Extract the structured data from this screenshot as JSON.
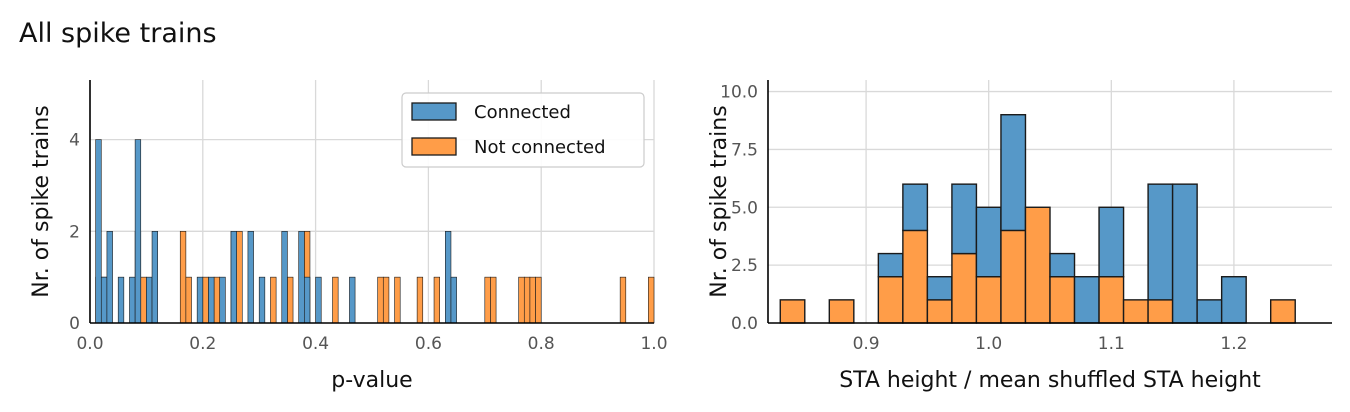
{
  "figure": {
    "suptitle": "All spike trains"
  },
  "colors": {
    "connected": "#5698c8",
    "not_connected": "#ff9d48",
    "grid": "#d9d9d9",
    "edge": "#1a1a1a"
  },
  "chart_data": [
    {
      "type": "bar",
      "subtype": "stacked-histogram",
      "xlabel": "p-value",
      "ylabel": "Nr. of spike trains",
      "xlim": [
        0,
        1
      ],
      "ylim": [
        0,
        5.3
      ],
      "xticks": [
        "0.0",
        "0.2",
        "0.4",
        "0.6",
        "0.8",
        "1.0"
      ],
      "yticks": [
        "0",
        "2",
        "4"
      ],
      "bin_width": 0.01,
      "legend": {
        "entries": [
          "Connected",
          "Not connected"
        ],
        "placement": "top-right"
      },
      "series": [
        {
          "name": "Connected",
          "bins": [
            [
              0.01,
              4
            ],
            [
              0.02,
              1
            ],
            [
              0.03,
              2
            ],
            [
              0.05,
              1
            ],
            [
              0.07,
              1
            ],
            [
              0.08,
              4
            ],
            [
              0.1,
              1
            ],
            [
              0.11,
              2
            ],
            [
              0.19,
              1
            ],
            [
              0.21,
              1
            ],
            [
              0.23,
              1
            ],
            [
              0.25,
              2
            ],
            [
              0.28,
              2
            ],
            [
              0.3,
              1
            ],
            [
              0.34,
              2
            ],
            [
              0.37,
              2
            ],
            [
              0.38,
              1
            ],
            [
              0.4,
              1
            ],
            [
              0.46,
              1
            ],
            [
              0.63,
              2
            ],
            [
              0.64,
              1
            ]
          ]
        },
        {
          "name": "Not connected",
          "bins": [
            [
              0.01,
              1
            ],
            [
              0.02,
              1
            ],
            [
              0.08,
              2
            ],
            [
              0.09,
              1
            ],
            [
              0.16,
              2
            ],
            [
              0.17,
              1
            ],
            [
              0.2,
              1
            ],
            [
              0.22,
              1
            ],
            [
              0.25,
              2
            ],
            [
              0.26,
              2
            ],
            [
              0.32,
              1
            ],
            [
              0.35,
              1
            ],
            [
              0.38,
              2
            ],
            [
              0.43,
              1
            ],
            [
              0.51,
              1
            ],
            [
              0.52,
              1
            ],
            [
              0.54,
              1
            ],
            [
              0.58,
              1
            ],
            [
              0.61,
              1
            ],
            [
              0.7,
              1
            ],
            [
              0.71,
              1
            ],
            [
              0.76,
              1
            ],
            [
              0.77,
              1
            ],
            [
              0.78,
              1
            ],
            [
              0.79,
              1
            ],
            [
              0.94,
              1
            ],
            [
              0.99,
              1
            ]
          ]
        }
      ]
    },
    {
      "type": "bar",
      "subtype": "stacked-histogram",
      "xlabel": "STA height / mean shuffled STA height",
      "ylabel": "Nr. of spike trains",
      "xlim": [
        0.82,
        1.28
      ],
      "ylim": [
        0,
        10.5
      ],
      "xticks": [
        "0.9",
        "1.0",
        "1.1",
        "1.2"
      ],
      "yticks": [
        "0.0",
        "2.5",
        "5.0",
        "7.5",
        "10.0"
      ],
      "bin_start": 0.83,
      "bin_width": 0.02,
      "series": [
        {
          "name": "Connected",
          "values": [
            0,
            0,
            0,
            0,
            1,
            2,
            1,
            3,
            3,
            5,
            0,
            1,
            2,
            3,
            0,
            5,
            6,
            1,
            2,
            0,
            0
          ]
        },
        {
          "name": "Not connected",
          "values": [
            1,
            0,
            1,
            0,
            2,
            4,
            1,
            3,
            2,
            4,
            5,
            2,
            0,
            2,
            1,
            1,
            0,
            0,
            0,
            0,
            1
          ]
        }
      ]
    }
  ]
}
